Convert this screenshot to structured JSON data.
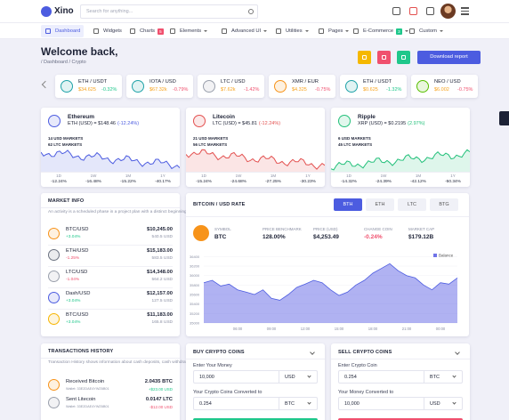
{
  "topbar": {
    "logo": "Xino",
    "search_placeholder": "Search for anything..."
  },
  "menu": [
    {
      "label": "Dashboard"
    },
    {
      "label": "Widgets"
    },
    {
      "label": "Charts",
      "badge": "5"
    },
    {
      "label": "Elements"
    },
    {
      "label": "Advanced UI"
    },
    {
      "label": "Utilities"
    },
    {
      "label": "Pages"
    },
    {
      "label": "E-Commerce",
      "badge": "3"
    },
    {
      "label": "Custom"
    }
  ],
  "header": {
    "title": "Welcome back,",
    "breadcrumb": "/ Dashboard / Crypto",
    "button": "Download report"
  },
  "ticker": [
    {
      "pair": "ETH / USDT",
      "price": "$34.625",
      "change": "-0.32%",
      "color": "#1fa2a8",
      "change_color": "#1fc78b"
    },
    {
      "pair": "IOTA / USD",
      "price": "$67.32k",
      "change": "-0.79%",
      "color": "#1fa2a8",
      "change_color": "#f0506e"
    },
    {
      "pair": "LTC / USD",
      "price": "$7.62k",
      "change": "-1.42%",
      "color": "#9aa0ac",
      "change_color": "#f0506e"
    },
    {
      "pair": "XMR / EUR",
      "price": "$4.325",
      "change": "-0.75%",
      "color": "#f7931a",
      "change_color": "#f0506e"
    },
    {
      "pair": "ETH / USDT",
      "price": "$0.625",
      "change": "-1.32%",
      "color": "#1fa2a8",
      "change_color": "#1fc78b"
    },
    {
      "pair": "NEO / USD",
      "price": "$6.002",
      "change": "-0.75%",
      "color": "#58bf00",
      "change_color": "#f0506e"
    }
  ],
  "coins": [
    {
      "name": "Ethereum",
      "rate": "ETH (USD) = $148.46",
      "change": "(-12.24%)",
      "markets": [
        "14 USD MARKETS",
        "62 LTC MARKETS"
      ],
      "periods": [
        "1D",
        "1W",
        "1M",
        "1Y"
      ],
      "stats": [
        "-12.24%",
        "-16.48%",
        "-15.22%",
        "-40.17%"
      ],
      "color": "#4c5ce0"
    },
    {
      "name": "Litecoin",
      "rate": "LTC (USD) = $45.81",
      "change": "(-12.24%)",
      "markets": [
        "21 USD MARKETS",
        "56 LTC MARKETS"
      ],
      "periods": [
        "1D",
        "1W",
        "1M",
        "1Y"
      ],
      "stats": [
        "-15.24%",
        "-24.68%",
        "-27.25%",
        "-30.23%"
      ],
      "color": "#e3504f"
    },
    {
      "name": "Ripple",
      "rate": "XRP (USD) = $0.2195",
      "change": "(2.97%)",
      "markets": [
        "6 USD MARKETS",
        "45 LTC MARKETS"
      ],
      "periods": [
        "1D",
        "1W",
        "1M",
        "1Y"
      ],
      "stats": [
        "-14.32%",
        "-24.39%",
        "-42.12%",
        "-50.34%"
      ],
      "color": "#22c07a"
    }
  ],
  "market_info": {
    "title": "MARKET INFO",
    "description": "An activity is a scheduled phase in a project plan with a distinct beginning and end.",
    "link": "Learn more",
    "rows": [
      {
        "pair": "BTC/USD",
        "change": "+3.04%",
        "price": "$10,245.00",
        "volume": "540.5 USD",
        "color": "#f7931a"
      },
      {
        "pair": "ETH/USD",
        "change": "-1.25%",
        "price": "$15,183.00",
        "volume": "583.5 USD",
        "color": "#6b7280"
      },
      {
        "pair": "LTC/USD",
        "change": "-1.04%",
        "price": "$14,348.00",
        "volume": "564.2 USD",
        "color": "#9aa0ac"
      },
      {
        "pair": "Dash/USD",
        "change": "+3.04%",
        "price": "$12,157.00",
        "volume": "127.5 USD",
        "color": "#4c5ce0"
      },
      {
        "pair": "BTC/USD",
        "change": "+3.04%",
        "price": "$11,183.00",
        "volume": "165.8 USD",
        "color": "#f7b500"
      }
    ]
  },
  "btc_rate": {
    "title": "BITCOIN / USD RATE",
    "tabs": [
      "BTH",
      "ETH",
      "LTC",
      "BTG"
    ],
    "stats": [
      {
        "label": "SYMBOL",
        "value": "BTC"
      },
      {
        "label": "PRICE BENCHMARK",
        "value": "128.00%"
      },
      {
        "label": "PRICE (USD)",
        "value": "$4,253.49"
      },
      {
        "label": "CHANGE COIN",
        "value": "-0.24%"
      },
      {
        "label": "MARKET CAP",
        "value": "$179.12B"
      }
    ]
  },
  "chart_data": {
    "type": "area",
    "categories": [
      null,
      null,
      null,
      null,
      "06:00",
      null,
      null,
      null,
      "09:00",
      null,
      null,
      null,
      "12:00",
      null,
      null,
      null,
      "15:00",
      null,
      null,
      null,
      "18:00",
      null,
      null,
      null,
      "21:00",
      null,
      null,
      null,
      "00:00",
      null,
      null
    ],
    "series": [
      {
        "name": "Balance",
        "color": "#6f73e8",
        "values": [
          35850,
          35900,
          35780,
          35820,
          35700,
          35650,
          35600,
          35700,
          35520,
          35480,
          35600,
          35750,
          35820,
          35900,
          35850,
          35700,
          35580,
          35650,
          35800,
          35900,
          36050,
          36150,
          36250,
          36100,
          36000,
          35950,
          35800,
          35700,
          35850,
          35820,
          35950
        ]
      }
    ],
    "ylim": [
      35000,
      36500
    ],
    "yticks": [
      35000,
      35200,
      35400,
      35600,
      35800,
      36000,
      36200,
      36400
    ],
    "grid": true,
    "legend": "top-right"
  },
  "transactions": {
    "title": "TRANSACTIONS HISTORY",
    "description": "Transaction History shows information about cash deposits, cash withdrawals for your account",
    "link": "Learn more",
    "rows": [
      {
        "name": "Received Bitcoin",
        "wallet": "Wallet: 33E2DAE4YWZ6B01",
        "amount": "2.0435 BTC",
        "usd": "+$23.00 USD",
        "color": "#f7931a"
      },
      {
        "name": "Sent Litecoin",
        "wallet": "Wallet: 33E2DAE4YWZ6B01",
        "amount": "0.0147 LTC",
        "usd": "-$12.00 USD",
        "color": "#9aa0ac"
      }
    ]
  },
  "buy": {
    "title": "BUY CRYPTO COINS",
    "label1": "Enter Your Money",
    "input1": "10,000",
    "unit1": "USD",
    "label2": "Your Crypto Coins Converted to",
    "input2": "0.254",
    "unit2": "BTC"
  },
  "sell": {
    "title": "SELL CRYPTO COINS",
    "label1": "Enter Crypto Coin",
    "input1": "0.254",
    "unit1": "BTC",
    "label2": "Your Money Converted to",
    "input2": "10,000",
    "unit2": "USD"
  }
}
